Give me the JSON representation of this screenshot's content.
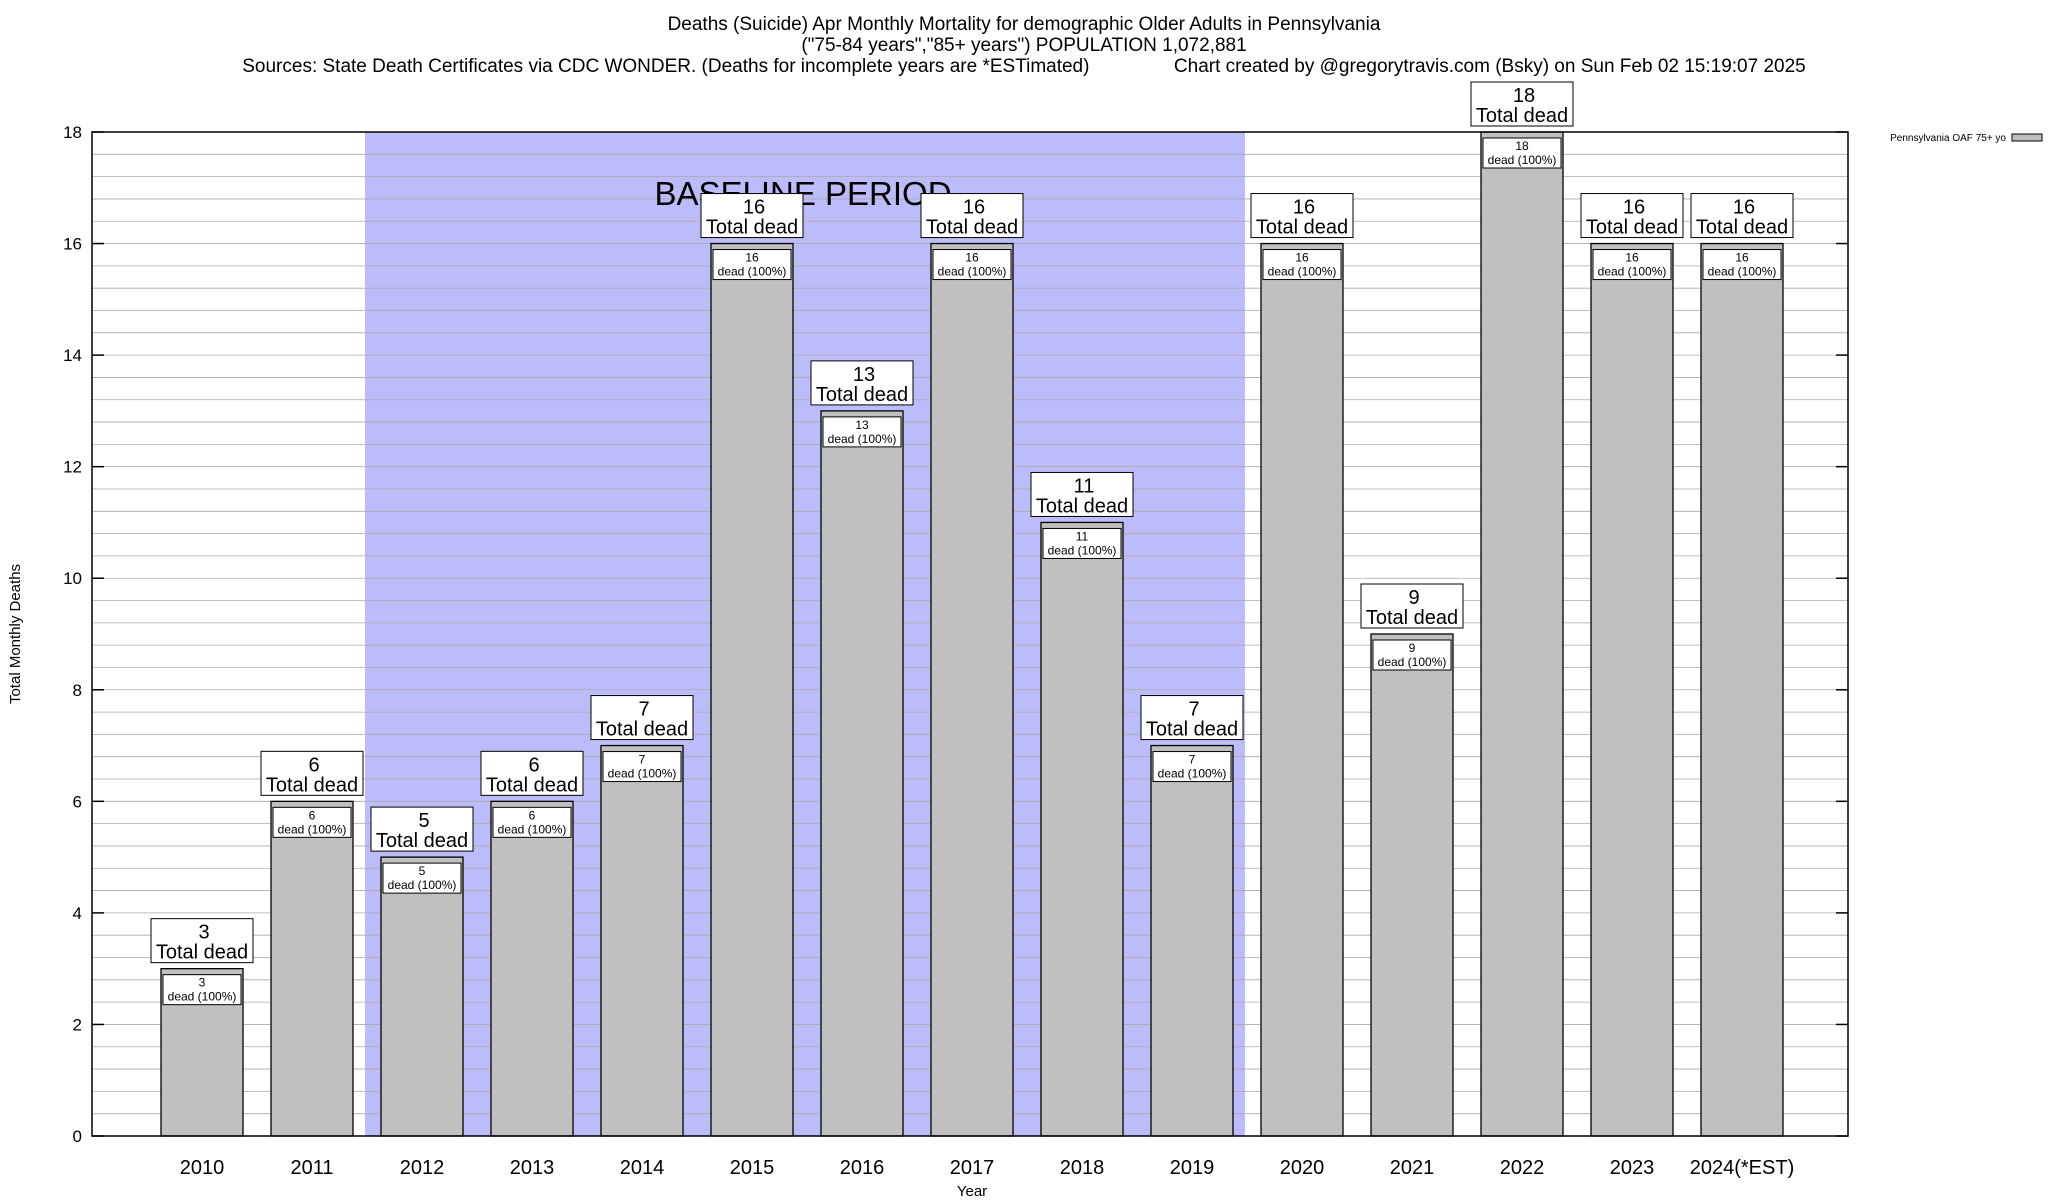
{
  "title_lines": [
    "Deaths (Suicide) Apr Monthly Mortality for demographic Older Adults in Pennsylvania",
    "(\"75-84 years\",\"85+ years\") POPULATION 1,072,881",
    "Sources: State Death Certificates via CDC WONDER. (Deaths for incomplete years are *ESTimated)                Chart created by @gregorytravis.com (Bsky) on Sun Feb 02 15:19:07 2025"
  ],
  "chart_data": {
    "type": "bar",
    "title": "Deaths (Suicide) Apr Monthly Mortality for demographic Older Adults in Pennsylvania",
    "xlabel": "Year",
    "ylabel": "Total Monthly Deaths",
    "ylim": [
      0,
      18
    ],
    "y_ticks": [
      0,
      2,
      4,
      6,
      8,
      10,
      12,
      14,
      16,
      18
    ],
    "grid": true,
    "legend_position": "top-right",
    "categories": [
      "2010",
      "2011",
      "2012",
      "2013",
      "2014",
      "2015",
      "2016",
      "2017",
      "2018",
      "2019",
      "2020",
      "2021",
      "2022",
      "2023",
      "2024(*EST)"
    ],
    "series": [
      {
        "name": "Pennsylvania OAF 75+ yo",
        "values": [
          3,
          6,
          5,
          6,
          7,
          16,
          13,
          16,
          11,
          7,
          16,
          9,
          18,
          16,
          16
        ]
      }
    ],
    "total_label_suffix": "Total dead",
    "inner_label_suffix": "dead (100%)",
    "baseline_period": {
      "label": "BASELINE PERIOD",
      "from_category": "2012",
      "to_category": "2019",
      "color": "#bcbcfa"
    },
    "bar_color": "#c0c0c0",
    "background_color": "#ffffff"
  }
}
